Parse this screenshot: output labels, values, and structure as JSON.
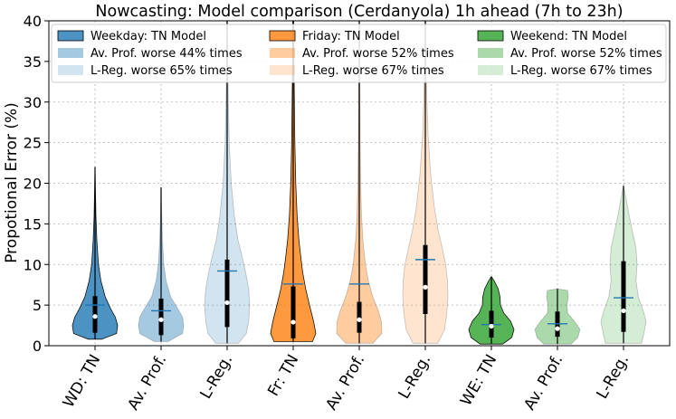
{
  "chart_data": {
    "type": "violin",
    "title": "Nowcasting: Model comparison (Cerdanyola) 1h ahead (7h to 23h)",
    "xlabel": "",
    "ylabel": "Propotional Error (%)",
    "ylim": [
      0,
      40
    ],
    "yticks": [
      0,
      5,
      10,
      15,
      20,
      25,
      30,
      35,
      40
    ],
    "grid": true,
    "legend_position": "top",
    "categories": [
      "WD: TN",
      "Av. Prof.",
      "L-Reg.",
      "Fr: TN",
      "Av. Prof.",
      "L-Reg.",
      "WE: TN",
      "Av. Prof.",
      "L-Reg."
    ],
    "legend": [
      "Weekday: TN Model",
      "Av. Prof. worse 44% times",
      "L-Reg.  worse 65% times",
      "Friday: TN Model",
      "Av. Prof. worse 52% times",
      "L-Reg.  worse 67% times",
      "Weekend: TN Model",
      "Av. Prof. worse 52% times",
      "L-Reg.  worse 67% times"
    ],
    "series": [
      {
        "color": "#1f77b4",
        "alpha": 0.8,
        "min": 0.8,
        "max": 22,
        "q1": 1.6,
        "median": 3.6,
        "q3": 6.1,
        "mean": 5.0,
        "profile": [
          [
            0.8,
            0.3
          ],
          [
            1.5,
            0.95
          ],
          [
            2.5,
            1.0
          ],
          [
            3.5,
            0.9
          ],
          [
            4.5,
            0.7
          ],
          [
            6,
            0.45
          ],
          [
            8,
            0.26
          ],
          [
            10,
            0.15
          ],
          [
            13,
            0.08
          ],
          [
            16,
            0.04
          ],
          [
            19,
            0.02
          ],
          [
            22,
            0
          ]
        ]
      },
      {
        "color": "#1f77b4",
        "alpha": 0.4,
        "min": 0.5,
        "max": 19.5,
        "q1": 1.3,
        "median": 3.2,
        "q3": 5.8,
        "mean": 4.3,
        "profile": [
          [
            0.5,
            0.3
          ],
          [
            1.5,
            0.95
          ],
          [
            2.5,
            1.0
          ],
          [
            3.5,
            0.95
          ],
          [
            4.5,
            0.75
          ],
          [
            6,
            0.42
          ],
          [
            8,
            0.22
          ],
          [
            10,
            0.12
          ],
          [
            13,
            0.06
          ],
          [
            16,
            0.03
          ],
          [
            19.5,
            0
          ]
        ]
      },
      {
        "color": "#1f77b4",
        "alpha": 0.2,
        "min": 0.3,
        "max": 40,
        "q1": 2.3,
        "median": 5.3,
        "q3": 10.6,
        "mean": 9.2,
        "profile": [
          [
            0.3,
            0.5
          ],
          [
            1.5,
            0.85
          ],
          [
            3,
            0.95
          ],
          [
            5,
            1.0
          ],
          [
            7,
            0.95
          ],
          [
            9,
            0.82
          ],
          [
            11,
            0.66
          ],
          [
            13,
            0.48
          ],
          [
            16,
            0.32
          ],
          [
            20,
            0.18
          ],
          [
            25,
            0.09
          ],
          [
            30,
            0.05
          ],
          [
            35,
            0.03
          ],
          [
            40,
            0.02
          ]
        ]
      },
      {
        "color": "#ff7f0e",
        "alpha": 0.8,
        "min": 0.5,
        "max": 40,
        "q1": 0.9,
        "median": 2.9,
        "q3": 7.3,
        "mean": 7.6,
        "profile": [
          [
            0.5,
            0.85
          ],
          [
            1.5,
            1.0
          ],
          [
            3,
            0.9
          ],
          [
            5,
            0.72
          ],
          [
            7,
            0.55
          ],
          [
            9,
            0.42
          ],
          [
            11,
            0.33
          ],
          [
            13,
            0.25
          ],
          [
            16,
            0.17
          ],
          [
            20,
            0.11
          ],
          [
            25,
            0.07
          ],
          [
            30,
            0.05
          ],
          [
            35,
            0.03
          ],
          [
            40,
            0.02
          ]
        ]
      },
      {
        "color": "#ff7f0e",
        "alpha": 0.4,
        "min": 0.3,
        "max": 40,
        "q1": 1.6,
        "median": 3.2,
        "q3": 5.4,
        "mean": 7.6,
        "profile": [
          [
            0.3,
            0.6
          ],
          [
            1.5,
            1.0
          ],
          [
            3,
            0.98
          ],
          [
            4.5,
            0.82
          ],
          [
            6,
            0.6
          ],
          [
            8,
            0.4
          ],
          [
            10,
            0.27
          ],
          [
            13,
            0.16
          ],
          [
            16,
            0.1
          ],
          [
            20,
            0.06
          ],
          [
            25,
            0.04
          ],
          [
            30,
            0.03
          ],
          [
            35,
            0.02
          ],
          [
            40,
            0.015
          ]
        ]
      },
      {
        "color": "#ff7f0e",
        "alpha": 0.2,
        "min": 0.3,
        "max": 40,
        "q1": 3.9,
        "median": 7.2,
        "q3": 12.4,
        "mean": 10.6,
        "profile": [
          [
            0.3,
            0.55
          ],
          [
            2,
            0.85
          ],
          [
            4,
            0.95
          ],
          [
            6,
            1.0
          ],
          [
            8,
            0.98
          ],
          [
            10,
            0.9
          ],
          [
            12,
            0.75
          ],
          [
            14,
            0.58
          ],
          [
            17,
            0.4
          ],
          [
            21,
            0.24
          ],
          [
            26,
            0.12
          ],
          [
            31,
            0.06
          ],
          [
            36,
            0.03
          ],
          [
            40,
            0.02
          ]
        ]
      },
      {
        "color": "#2ca02c",
        "alpha": 0.8,
        "min": 0.2,
        "max": 8.5,
        "q1": 1.0,
        "median": 2.4,
        "q3": 4.3,
        "mean": 2.6,
        "profile": [
          [
            0.2,
            0.5
          ],
          [
            1,
            0.9
          ],
          [
            2,
            1.0
          ],
          [
            3,
            0.85
          ],
          [
            4,
            0.55
          ],
          [
            5,
            0.4
          ],
          [
            6,
            0.38
          ],
          [
            7,
            0.3
          ],
          [
            8,
            0.12
          ],
          [
            8.5,
            0
          ]
        ]
      },
      {
        "color": "#2ca02c",
        "alpha": 0.4,
        "min": 0.2,
        "max": 7.0,
        "q1": 1.1,
        "median": 2.1,
        "q3": 4.2,
        "mean": 2.7,
        "profile": [
          [
            0.2,
            0.6
          ],
          [
            1,
            0.9
          ],
          [
            2,
            1.0
          ],
          [
            3,
            0.75
          ],
          [
            4,
            0.45
          ],
          [
            5,
            0.42
          ],
          [
            6,
            0.48
          ],
          [
            6.8,
            0.45
          ],
          [
            7,
            0
          ]
        ]
      },
      {
        "color": "#2ca02c",
        "alpha": 0.2,
        "min": 0.3,
        "max": 19.7,
        "q1": 1.7,
        "median": 4.3,
        "q3": 10.4,
        "mean": 5.9,
        "profile": [
          [
            0.3,
            0.8
          ],
          [
            1.5,
            0.9
          ],
          [
            3,
            1.0
          ],
          [
            4.5,
            0.85
          ],
          [
            6,
            0.65
          ],
          [
            8,
            0.55
          ],
          [
            10,
            0.6
          ],
          [
            12,
            0.55
          ],
          [
            14,
            0.4
          ],
          [
            16,
            0.25
          ],
          [
            18,
            0.12
          ],
          [
            19.7,
            0
          ]
        ]
      }
    ]
  }
}
